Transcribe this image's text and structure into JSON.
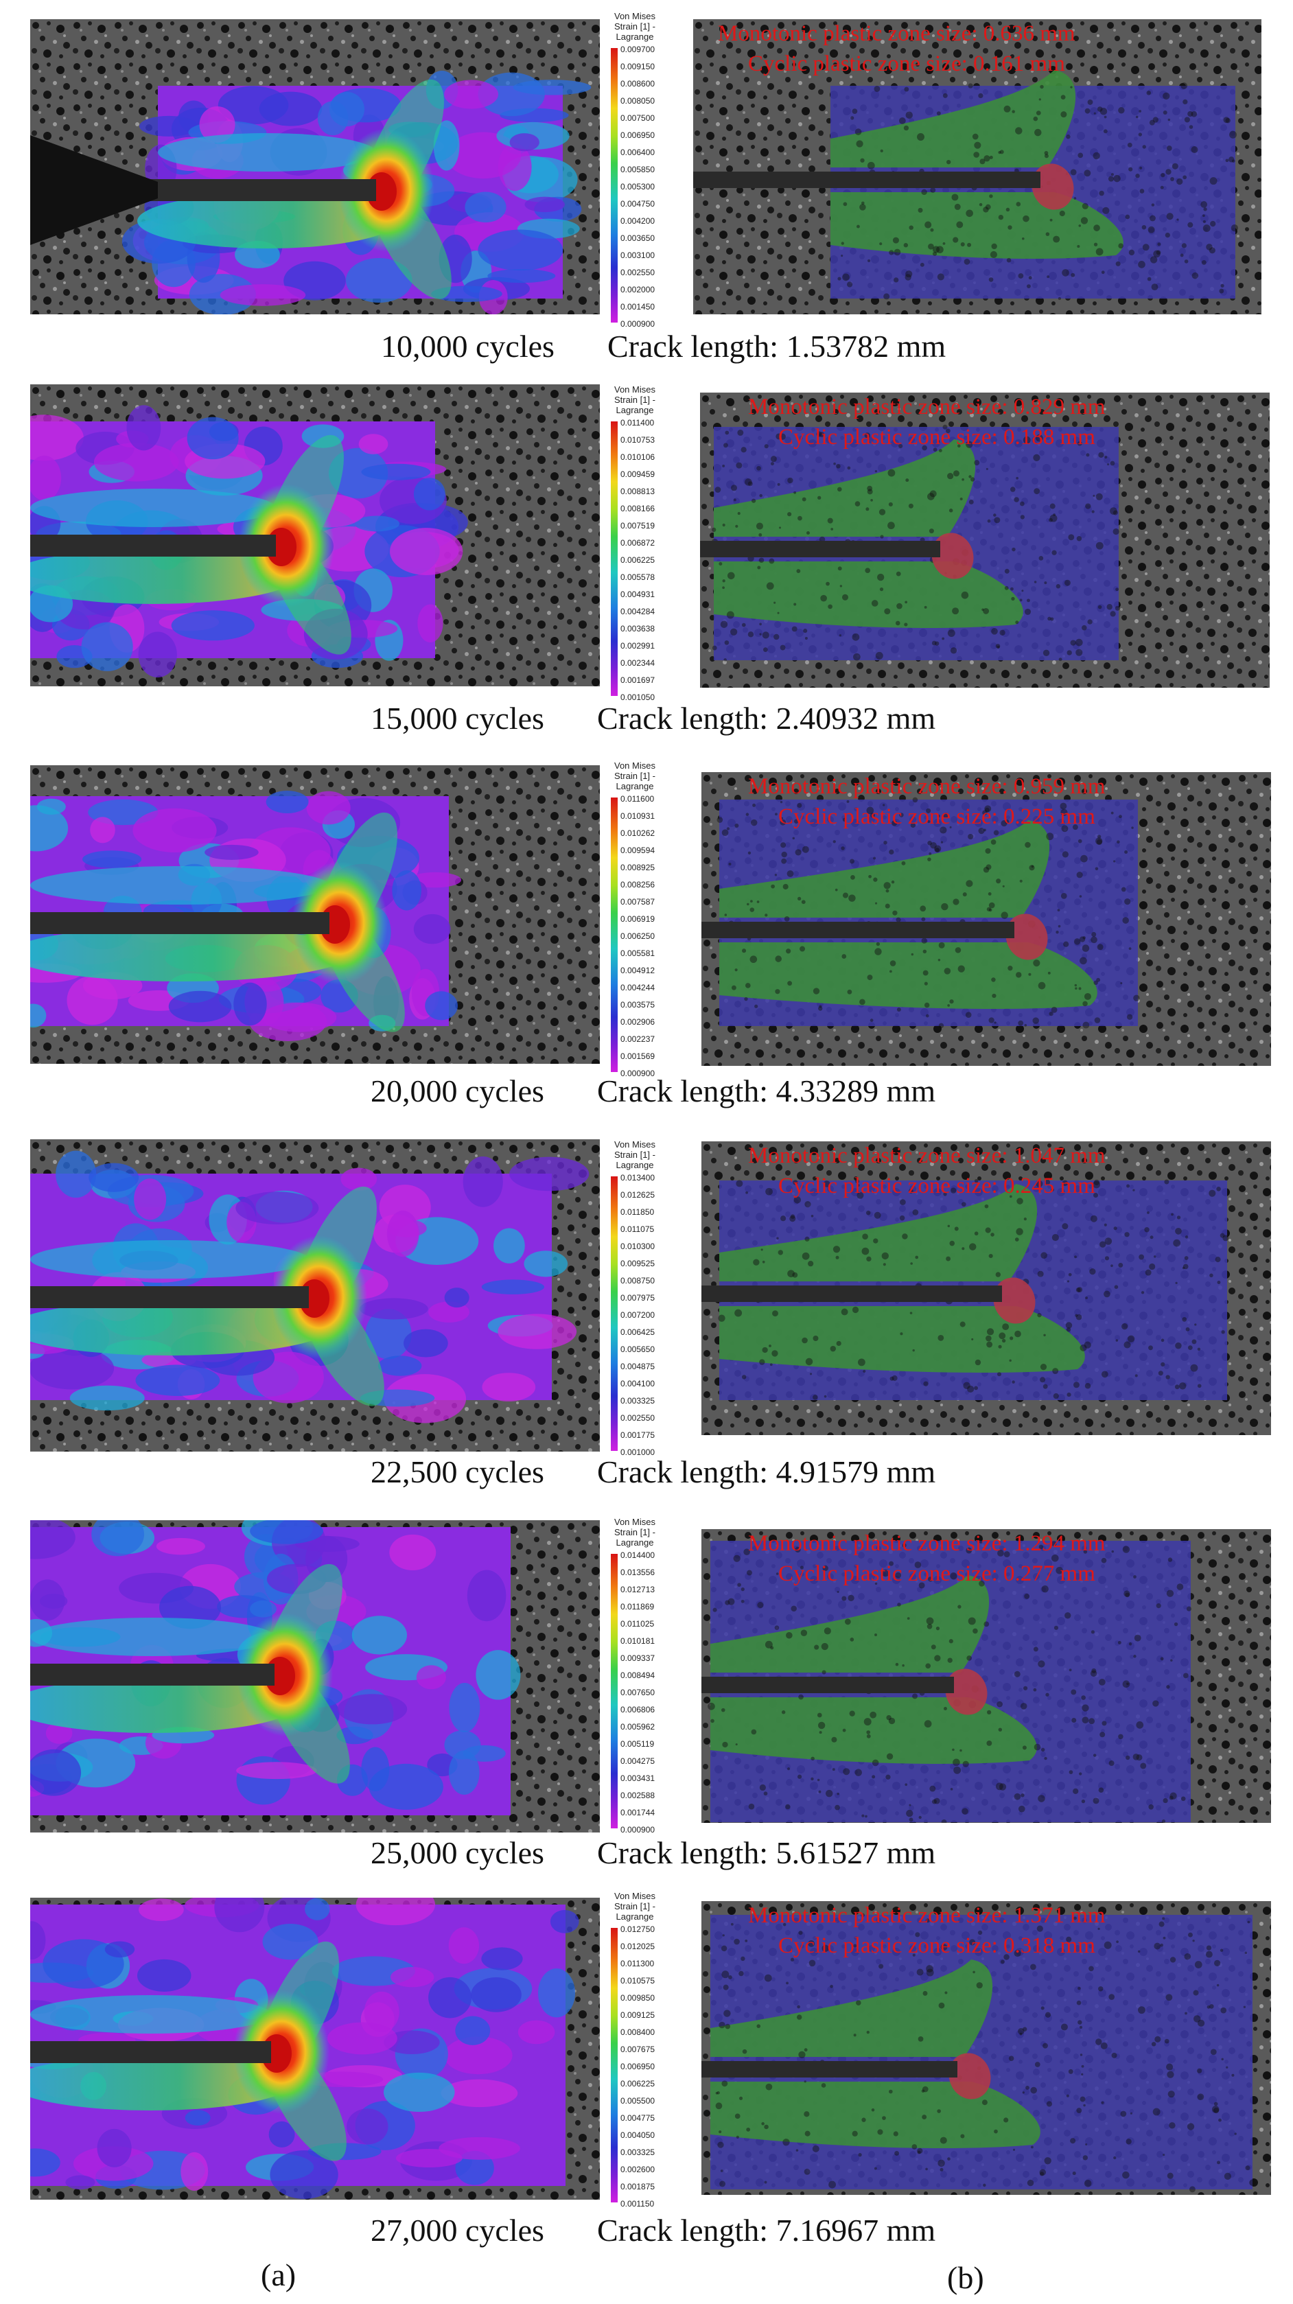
{
  "colors": {
    "speckle_bg": "#3c3c3c",
    "strain_low": "#9b20d8",
    "strain_mid": "#1fb8d8",
    "strain_high": "#e01010",
    "zone_elastic": "#3d3aa8",
    "zone_monotonic": "#3c8c3c",
    "zone_cyclic": "#b03848",
    "label_red": "#e01818"
  },
  "legend_title": [
    "Von Mises",
    "Strain [1] -",
    "Lagrange"
  ],
  "rows": [
    {
      "cycles": "10,000 cycles",
      "crack": "Crack length: 1.53782 mm",
      "legend_ticks": [
        "0.009700",
        "0.009150",
        "0.008600",
        "0.008050",
        "0.007500",
        "0.006950",
        "0.006400",
        "0.005850",
        "0.005300",
        "0.004750",
        "0.004200",
        "0.003650",
        "0.003100",
        "0.002550",
        "0.002000",
        "0.001450",
        "0.000900"
      ],
      "monotonic_label": "Monotonic plastic zone size:  0.636 mm",
      "cyclic_label": "Cyclic plastic zone size:  0.161 mm"
    },
    {
      "cycles": "15,000 cycles",
      "crack": "Crack length: 2.40932 mm",
      "legend_ticks": [
        "0.011400",
        "0.010753",
        "0.010106",
        "0.009459",
        "0.008813",
        "0.008166",
        "0.007519",
        "0.006872",
        "0.006225",
        "0.005578",
        "0.004931",
        "0.004284",
        "0.003638",
        "0.002991",
        "0.002344",
        "0.001697",
        "0.001050"
      ],
      "monotonic_label": "Monotonic plastic zone size:  0.829 mm",
      "cyclic_label": "Cyclic plastic zone size:  0.188 mm"
    },
    {
      "cycles": "20,000 cycles",
      "crack": "Crack length: 4.33289 mm",
      "legend_ticks": [
        "0.011600",
        "0.010931",
        "0.010262",
        "0.009594",
        "0.008925",
        "0.008256",
        "0.007587",
        "0.006919",
        "0.006250",
        "0.005581",
        "0.004912",
        "0.004244",
        "0.003575",
        "0.002906",
        "0.002237",
        "0.001569",
        "0.000900"
      ],
      "monotonic_label": "Monotonic plastic zone size:  0.959 mm",
      "cyclic_label": "Cyclic plastic zone size:  0.225 mm"
    },
    {
      "cycles": "22,500 cycles",
      "crack": "Crack length: 4.91579 mm",
      "legend_ticks": [
        "0.013400",
        "0.012625",
        "0.011850",
        "0.011075",
        "0.010300",
        "0.009525",
        "0.008750",
        "0.007975",
        "0.007200",
        "0.006425",
        "0.005650",
        "0.004875",
        "0.004100",
        "0.003325",
        "0.002550",
        "0.001775",
        "0.001000"
      ],
      "monotonic_label": "Monotonic plastic zone size:  1.047 mm",
      "cyclic_label": "Cyclic plastic zone size:  0.245 mm"
    },
    {
      "cycles": "25,000 cycles",
      "crack": "Crack length: 5.61527 mm",
      "legend_ticks": [
        "0.014400",
        "0.013556",
        "0.012713",
        "0.011869",
        "0.011025",
        "0.010181",
        "0.009337",
        "0.008494",
        "0.007650",
        "0.006806",
        "0.005962",
        "0.005119",
        "0.004275",
        "0.003431",
        "0.002588",
        "0.001744",
        "0.000900"
      ],
      "monotonic_label": "Monotonic plastic zone size:  1.294 mm",
      "cyclic_label": "Cyclic plastic zone size:  0.277 mm"
    },
    {
      "cycles": "27,000 cycles",
      "crack": "Crack length: 7.16967 mm",
      "legend_ticks": [
        "0.012750",
        "0.012025",
        "0.011300",
        "0.010575",
        "0.009850",
        "0.009125",
        "0.008400",
        "0.007675",
        "0.006950",
        "0.006225",
        "0.005500",
        "0.004775",
        "0.004050",
        "0.003325",
        "0.002600",
        "0.001875",
        "0.001150"
      ],
      "monotonic_label": "Monotonic plastic zone size:  1.371 mm",
      "cyclic_label": "Cyclic plastic zone size:  0.318 mm"
    }
  ],
  "panel_labels": {
    "a": "(a)",
    "b": "(b)"
  }
}
